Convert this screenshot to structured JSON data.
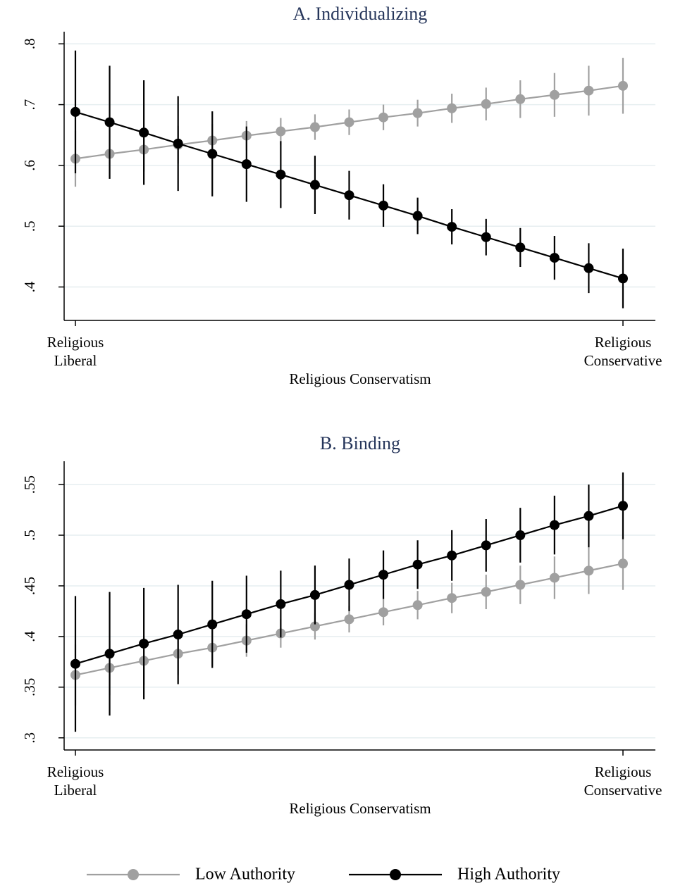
{
  "chart_data": [
    {
      "type": "line",
      "title": "A. Individualizing",
      "x_label": "Religious Conservatism",
      "categories": [
        "Religious\nLiberal",
        null,
        null,
        null,
        null,
        null,
        null,
        null,
        null,
        null,
        null,
        null,
        null,
        null,
        null,
        null,
        "Religious\nConservative"
      ],
      "ylim": [
        0.345,
        0.82
      ],
      "yticks": [
        {
          "value": 0.4,
          "label": ".4"
        },
        {
          "value": 0.5,
          "label": ".5"
        },
        {
          "value": 0.6,
          "label": ".6"
        },
        {
          "value": 0.7,
          "label": ".7"
        },
        {
          "value": 0.8,
          "label": ".8"
        }
      ],
      "grid": true,
      "series": [
        {
          "color": "#a0a0a0",
          "values": [
            0.611,
            0.619,
            0.626,
            0.634,
            0.641,
            0.649,
            0.656,
            0.663,
            0.671,
            0.679,
            0.686,
            0.694,
            0.701,
            0.709,
            0.716,
            0.723,
            0.731
          ],
          "errors": [
            0.046,
            0.041,
            0.036,
            0.031,
            0.027,
            0.024,
            0.022,
            0.021,
            0.021,
            0.021,
            0.022,
            0.024,
            0.027,
            0.031,
            0.036,
            0.041,
            0.046
          ]
        },
        {
          "color": "#000000",
          "values": [
            0.688,
            0.671,
            0.654,
            0.636,
            0.619,
            0.602,
            0.585,
            0.568,
            0.551,
            0.534,
            0.517,
            0.499,
            0.482,
            0.465,
            0.448,
            0.431,
            0.414
          ],
          "errors": [
            0.101,
            0.093,
            0.086,
            0.078,
            0.07,
            0.062,
            0.055,
            0.048,
            0.04,
            0.035,
            0.03,
            0.029,
            0.03,
            0.032,
            0.036,
            0.041,
            0.049
          ]
        }
      ]
    },
    {
      "type": "line",
      "title": "B. Binding",
      "x_label": "Religious Conservatism",
      "categories": [
        "Religious\nLiberal",
        null,
        null,
        null,
        null,
        null,
        null,
        null,
        null,
        null,
        null,
        null,
        null,
        null,
        null,
        null,
        "Religious\nConservative"
      ],
      "ylim": [
        0.288,
        0.573
      ],
      "yticks": [
        {
          "value": 0.3,
          "label": ".3"
        },
        {
          "value": 0.35,
          "label": ".35"
        },
        {
          "value": 0.4,
          "label": ".4"
        },
        {
          "value": 0.45,
          "label": ".45"
        },
        {
          "value": 0.5,
          "label": ".5"
        },
        {
          "value": 0.55,
          "label": ".55"
        }
      ],
      "grid": true,
      "series": [
        {
          "name": "Low Authority",
          "color": "#a0a0a0",
          "values": [
            0.362,
            0.369,
            0.376,
            0.383,
            0.389,
            0.396,
            0.403,
            0.41,
            0.417,
            0.424,
            0.431,
            0.438,
            0.444,
            0.451,
            0.458,
            0.465,
            0.472
          ],
          "errors": [
            0.03,
            0.027,
            0.024,
            0.021,
            0.018,
            0.016,
            0.014,
            0.013,
            0.013,
            0.013,
            0.014,
            0.015,
            0.017,
            0.019,
            0.021,
            0.023,
            0.026
          ]
        },
        {
          "name": "High Authority",
          "color": "#000000",
          "values": [
            0.373,
            0.383,
            0.393,
            0.402,
            0.412,
            0.422,
            0.432,
            0.441,
            0.451,
            0.461,
            0.471,
            0.48,
            0.49,
            0.5,
            0.51,
            0.519,
            0.529
          ],
          "errors": [
            0.067,
            0.061,
            0.055,
            0.049,
            0.043,
            0.038,
            0.033,
            0.029,
            0.026,
            0.024,
            0.024,
            0.025,
            0.026,
            0.027,
            0.029,
            0.031,
            0.033
          ]
        }
      ]
    }
  ]
}
